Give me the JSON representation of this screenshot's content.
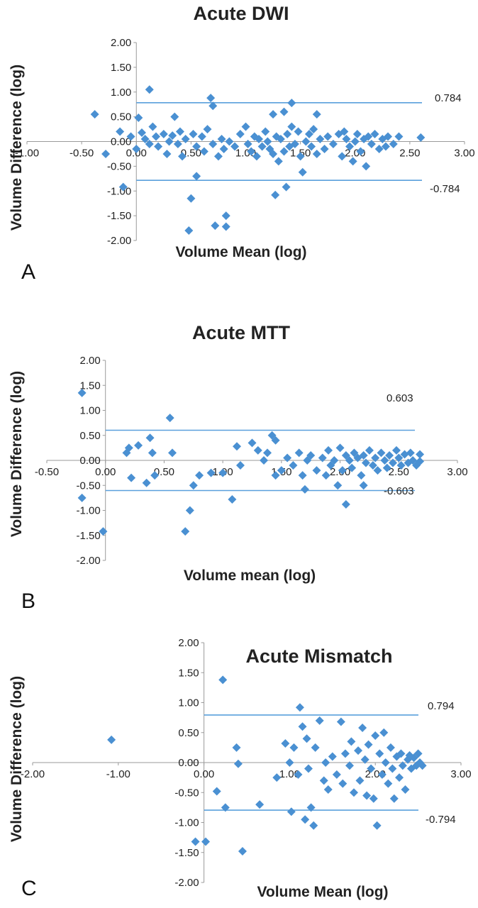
{
  "colors": {
    "marker": "#4a90d2",
    "line": "#5aa0dc",
    "axis": "#9a9a9a",
    "text": "#222222"
  },
  "chart_data": [
    {
      "type": "scatter",
      "panel": "A",
      "title": "Acute DWI",
      "xlabel": "Volume Mean (log)",
      "ylabel": "Volume Difference (log)",
      "xlim": [
        -1.0,
        3.0
      ],
      "ylim": [
        -2.0,
        2.0
      ],
      "xticks": [
        "-1.00",
        "-0.50",
        "0.00",
        "0.50",
        "1.00",
        "1.50",
        "2.00",
        "2.50",
        "3.00"
      ],
      "yticks": [
        "2.00",
        "1.50",
        "1.00",
        "0.50",
        "0.00",
        "-0.50",
        "-1.00",
        "-1.50",
        "-2.00"
      ],
      "limits": {
        "upper": 0.784,
        "lower": -0.784,
        "upper_label": "0.784",
        "lower_label": "-0.784"
      },
      "points": [
        [
          -0.38,
          0.55
        ],
        [
          -0.28,
          -0.25
        ],
        [
          -0.15,
          0.2
        ],
        [
          -0.12,
          -0.92
        ],
        [
          -0.05,
          0.1
        ],
        [
          0.0,
          -0.15
        ],
        [
          0.02,
          0.48
        ],
        [
          0.05,
          0.18
        ],
        [
          0.08,
          0.05
        ],
        [
          0.12,
          1.05
        ],
        [
          0.12,
          -0.05
        ],
        [
          0.15,
          0.3
        ],
        [
          0.18,
          0.1
        ],
        [
          0.2,
          -0.1
        ],
        [
          0.25,
          0.15
        ],
        [
          0.28,
          -0.25
        ],
        [
          0.3,
          0.0
        ],
        [
          0.33,
          0.12
        ],
        [
          0.35,
          0.5
        ],
        [
          0.38,
          -0.05
        ],
        [
          0.4,
          0.2
        ],
        [
          0.42,
          -0.3
        ],
        [
          0.45,
          0.05
        ],
        [
          0.48,
          -1.8
        ],
        [
          0.5,
          -1.15
        ],
        [
          0.52,
          0.15
        ],
        [
          0.55,
          -0.7
        ],
        [
          0.55,
          -0.1
        ],
        [
          0.6,
          0.1
        ],
        [
          0.62,
          -0.2
        ],
        [
          0.65,
          0.25
        ],
        [
          0.68,
          0.88
        ],
        [
          0.7,
          0.72
        ],
        [
          0.7,
          -0.05
        ],
        [
          0.72,
          -1.7
        ],
        [
          0.75,
          -0.3
        ],
        [
          0.78,
          0.05
        ],
        [
          0.8,
          -0.15
        ],
        [
          0.82,
          -1.5
        ],
        [
          0.82,
          -1.72
        ],
        [
          0.85,
          0.0
        ],
        [
          0.9,
          -0.1
        ],
        [
          0.95,
          0.15
        ],
        [
          1.0,
          0.3
        ],
        [
          1.02,
          -0.05
        ],
        [
          1.05,
          -0.2
        ],
        [
          1.08,
          0.1
        ],
        [
          1.1,
          -0.3
        ],
        [
          1.12,
          0.05
        ],
        [
          1.15,
          -0.1
        ],
        [
          1.18,
          0.2
        ],
        [
          1.2,
          0.0
        ],
        [
          1.22,
          -0.15
        ],
        [
          1.25,
          0.55
        ],
        [
          1.25,
          -0.25
        ],
        [
          1.27,
          -1.08
        ],
        [
          1.28,
          0.1
        ],
        [
          1.3,
          -0.4
        ],
        [
          1.32,
          0.05
        ],
        [
          1.35,
          0.6
        ],
        [
          1.35,
          -0.2
        ],
        [
          1.37,
          -0.92
        ],
        [
          1.38,
          0.15
        ],
        [
          1.4,
          -0.1
        ],
        [
          1.42,
          0.78
        ],
        [
          1.42,
          0.3
        ],
        [
          1.45,
          -0.05
        ],
        [
          1.48,
          0.2
        ],
        [
          1.5,
          -0.3
        ],
        [
          1.52,
          -0.62
        ],
        [
          1.55,
          0.0
        ],
        [
          1.58,
          0.15
        ],
        [
          1.6,
          -0.1
        ],
        [
          1.62,
          0.25
        ],
        [
          1.65,
          0.55
        ],
        [
          1.65,
          -0.25
        ],
        [
          1.68,
          0.05
        ],
        [
          1.72,
          -0.15
        ],
        [
          1.75,
          0.1
        ],
        [
          1.8,
          -0.05
        ],
        [
          1.85,
          0.15
        ],
        [
          1.88,
          -0.3
        ],
        [
          1.9,
          0.2
        ],
        [
          1.92,
          0.05
        ],
        [
          1.95,
          -0.1
        ],
        [
          1.98,
          -0.4
        ],
        [
          2.0,
          0.0
        ],
        [
          2.02,
          0.15
        ],
        [
          2.05,
          -0.2
        ],
        [
          2.08,
          0.05
        ],
        [
          2.1,
          -0.5
        ],
        [
          2.12,
          0.1
        ],
        [
          2.15,
          -0.05
        ],
        [
          2.18,
          0.15
        ],
        [
          2.22,
          -0.15
        ],
        [
          2.25,
          0.05
        ],
        [
          2.28,
          -0.1
        ],
        [
          2.3,
          0.1
        ],
        [
          2.35,
          -0.05
        ],
        [
          2.4,
          0.1
        ],
        [
          2.6,
          0.08
        ]
      ]
    },
    {
      "type": "scatter",
      "panel": "B",
      "title": "Acute MTT",
      "xlabel": "Volume mean (log)",
      "ylabel": "Volume Difference (log)",
      "xlim": [
        -0.5,
        3.0
      ],
      "ylim": [
        -2.0,
        2.0
      ],
      "xticks": [
        "-0.50",
        "0.00",
        "0.50",
        "1.00",
        "1.50",
        "2.00",
        "2.50",
        "3.00"
      ],
      "yticks": [
        "2.00",
        "1.50",
        "1.00",
        "0.50",
        "0.00",
        "-0.50",
        "-1.00",
        "-1.50",
        "-2.00"
      ],
      "limits": {
        "upper": 0.603,
        "lower": -0.603,
        "upper_label": "0.603",
        "lower_label": "-0.603"
      },
      "points": [
        [
          -0.2,
          1.35
        ],
        [
          -0.2,
          -0.75
        ],
        [
          -0.02,
          -1.42
        ],
        [
          0.18,
          0.15
        ],
        [
          0.2,
          0.25
        ],
        [
          0.22,
          -0.35
        ],
        [
          0.28,
          0.3
        ],
        [
          0.35,
          -0.45
        ],
        [
          0.38,
          0.45
        ],
        [
          0.4,
          0.15
        ],
        [
          0.42,
          -0.3
        ],
        [
          0.55,
          0.85
        ],
        [
          0.57,
          0.15
        ],
        [
          0.68,
          -1.42
        ],
        [
          0.72,
          -1.0
        ],
        [
          0.75,
          -0.5
        ],
        [
          0.8,
          -0.3
        ],
        [
          0.9,
          -0.25
        ],
        [
          1.0,
          -0.25
        ],
        [
          1.08,
          -0.78
        ],
        [
          1.12,
          0.28
        ],
        [
          1.15,
          -0.1
        ],
        [
          1.25,
          0.35
        ],
        [
          1.3,
          0.2
        ],
        [
          1.35,
          0.0
        ],
        [
          1.38,
          0.15
        ],
        [
          1.42,
          0.5
        ],
        [
          1.45,
          0.4
        ],
        [
          1.45,
          -0.3
        ],
        [
          1.5,
          -0.2
        ],
        [
          1.55,
          0.05
        ],
        [
          1.6,
          -0.1
        ],
        [
          1.65,
          0.15
        ],
        [
          1.68,
          -0.3
        ],
        [
          1.7,
          -0.58
        ],
        [
          1.72,
          0.0
        ],
        [
          1.75,
          0.1
        ],
        [
          1.8,
          -0.2
        ],
        [
          1.85,
          0.05
        ],
        [
          1.88,
          -0.3
        ],
        [
          1.9,
          0.2
        ],
        [
          1.92,
          -0.1
        ],
        [
          1.95,
          0.0
        ],
        [
          1.98,
          -0.5
        ],
        [
          2.0,
          0.25
        ],
        [
          2.02,
          -0.2
        ],
        [
          2.05,
          -0.88
        ],
        [
          2.05,
          0.1
        ],
        [
          2.08,
          0.0
        ],
        [
          2.1,
          -0.15
        ],
        [
          2.12,
          0.15
        ],
        [
          2.15,
          0.05
        ],
        [
          2.18,
          -0.3
        ],
        [
          2.2,
          -0.5
        ],
        [
          2.2,
          0.1
        ],
        [
          2.22,
          -0.05
        ],
        [
          2.25,
          0.2
        ],
        [
          2.28,
          -0.1
        ],
        [
          2.3,
          0.05
        ],
        [
          2.32,
          -0.2
        ],
        [
          2.35,
          0.15
        ],
        [
          2.38,
          0.0
        ],
        [
          2.4,
          -0.15
        ],
        [
          2.42,
          0.1
        ],
        [
          2.45,
          -0.05
        ],
        [
          2.48,
          0.2
        ],
        [
          2.5,
          0.05
        ],
        [
          2.52,
          -0.1
        ],
        [
          2.55,
          0.12
        ],
        [
          2.58,
          -0.05
        ],
        [
          2.6,
          0.15
        ],
        [
          2.62,
          0.0
        ],
        [
          2.65,
          -0.1
        ],
        [
          2.68,
          0.12
        ],
        [
          2.68,
          -0.02
        ]
      ]
    },
    {
      "type": "scatter",
      "panel": "C",
      "title": "Acute Mismatch",
      "xlabel": "Volume Mean (log)",
      "ylabel": "Volume Difference (log)",
      "xlim": [
        -2.0,
        3.0
      ],
      "ylim": [
        -2.0,
        2.0
      ],
      "xticks": [
        "-2.00",
        "-1.00",
        "0.00",
        "1.00",
        "2.00",
        "3.00"
      ],
      "yticks": [
        "2.00",
        "1.50",
        "1.00",
        "0.50",
        "0.00",
        "-0.50",
        "-1.00",
        "-1.50",
        "-2.00"
      ],
      "limits": {
        "upper": 0.794,
        "lower": -0.794,
        "upper_label": "0.794",
        "lower_label": "-0.794"
      },
      "points": [
        [
          -1.08,
          0.38
        ],
        [
          -0.1,
          -1.32
        ],
        [
          0.02,
          -1.32
        ],
        [
          0.15,
          -0.48
        ],
        [
          0.22,
          1.38
        ],
        [
          0.25,
          -0.75
        ],
        [
          0.38,
          0.25
        ],
        [
          0.4,
          -0.02
        ],
        [
          0.45,
          -1.48
        ],
        [
          0.65,
          -0.7
        ],
        [
          0.85,
          -0.25
        ],
        [
          0.95,
          0.32
        ],
        [
          1.0,
          0.0
        ],
        [
          1.02,
          -0.82
        ],
        [
          1.05,
          0.25
        ],
        [
          1.1,
          -0.2
        ],
        [
          1.12,
          0.92
        ],
        [
          1.15,
          0.6
        ],
        [
          1.18,
          -0.95
        ],
        [
          1.2,
          0.4
        ],
        [
          1.22,
          -0.1
        ],
        [
          1.25,
          -0.75
        ],
        [
          1.28,
          -1.05
        ],
        [
          1.3,
          0.25
        ],
        [
          1.35,
          0.7
        ],
        [
          1.4,
          -0.3
        ],
        [
          1.42,
          0.0
        ],
        [
          1.45,
          -0.45
        ],
        [
          1.5,
          0.1
        ],
        [
          1.55,
          -0.2
        ],
        [
          1.6,
          0.68
        ],
        [
          1.62,
          -0.35
        ],
        [
          1.65,
          0.15
        ],
        [
          1.7,
          -0.05
        ],
        [
          1.72,
          0.35
        ],
        [
          1.75,
          -0.5
        ],
        [
          1.8,
          0.2
        ],
        [
          1.82,
          -0.3
        ],
        [
          1.85,
          0.58
        ],
        [
          1.88,
          0.05
        ],
        [
          1.9,
          -0.55
        ],
        [
          1.92,
          0.3
        ],
        [
          1.95,
          -0.1
        ],
        [
          1.98,
          -0.6
        ],
        [
          2.0,
          0.45
        ],
        [
          2.02,
          -1.05
        ],
        [
          2.05,
          0.15
        ],
        [
          2.08,
          -0.2
        ],
        [
          2.1,
          0.5
        ],
        [
          2.12,
          0.0
        ],
        [
          2.15,
          -0.35
        ],
        [
          2.18,
          0.25
        ],
        [
          2.2,
          -0.1
        ],
        [
          2.22,
          -0.6
        ],
        [
          2.25,
          0.1
        ],
        [
          2.28,
          -0.25
        ],
        [
          2.3,
          0.15
        ],
        [
          2.32,
          -0.05
        ],
        [
          2.35,
          -0.45
        ],
        [
          2.38,
          0.05
        ],
        [
          2.4,
          0.12
        ],
        [
          2.42,
          -0.1
        ],
        [
          2.45,
          0.08
        ],
        [
          2.48,
          -0.05
        ],
        [
          2.5,
          0.15
        ],
        [
          2.52,
          0.0
        ],
        [
          2.55,
          -0.05
        ]
      ]
    }
  ]
}
